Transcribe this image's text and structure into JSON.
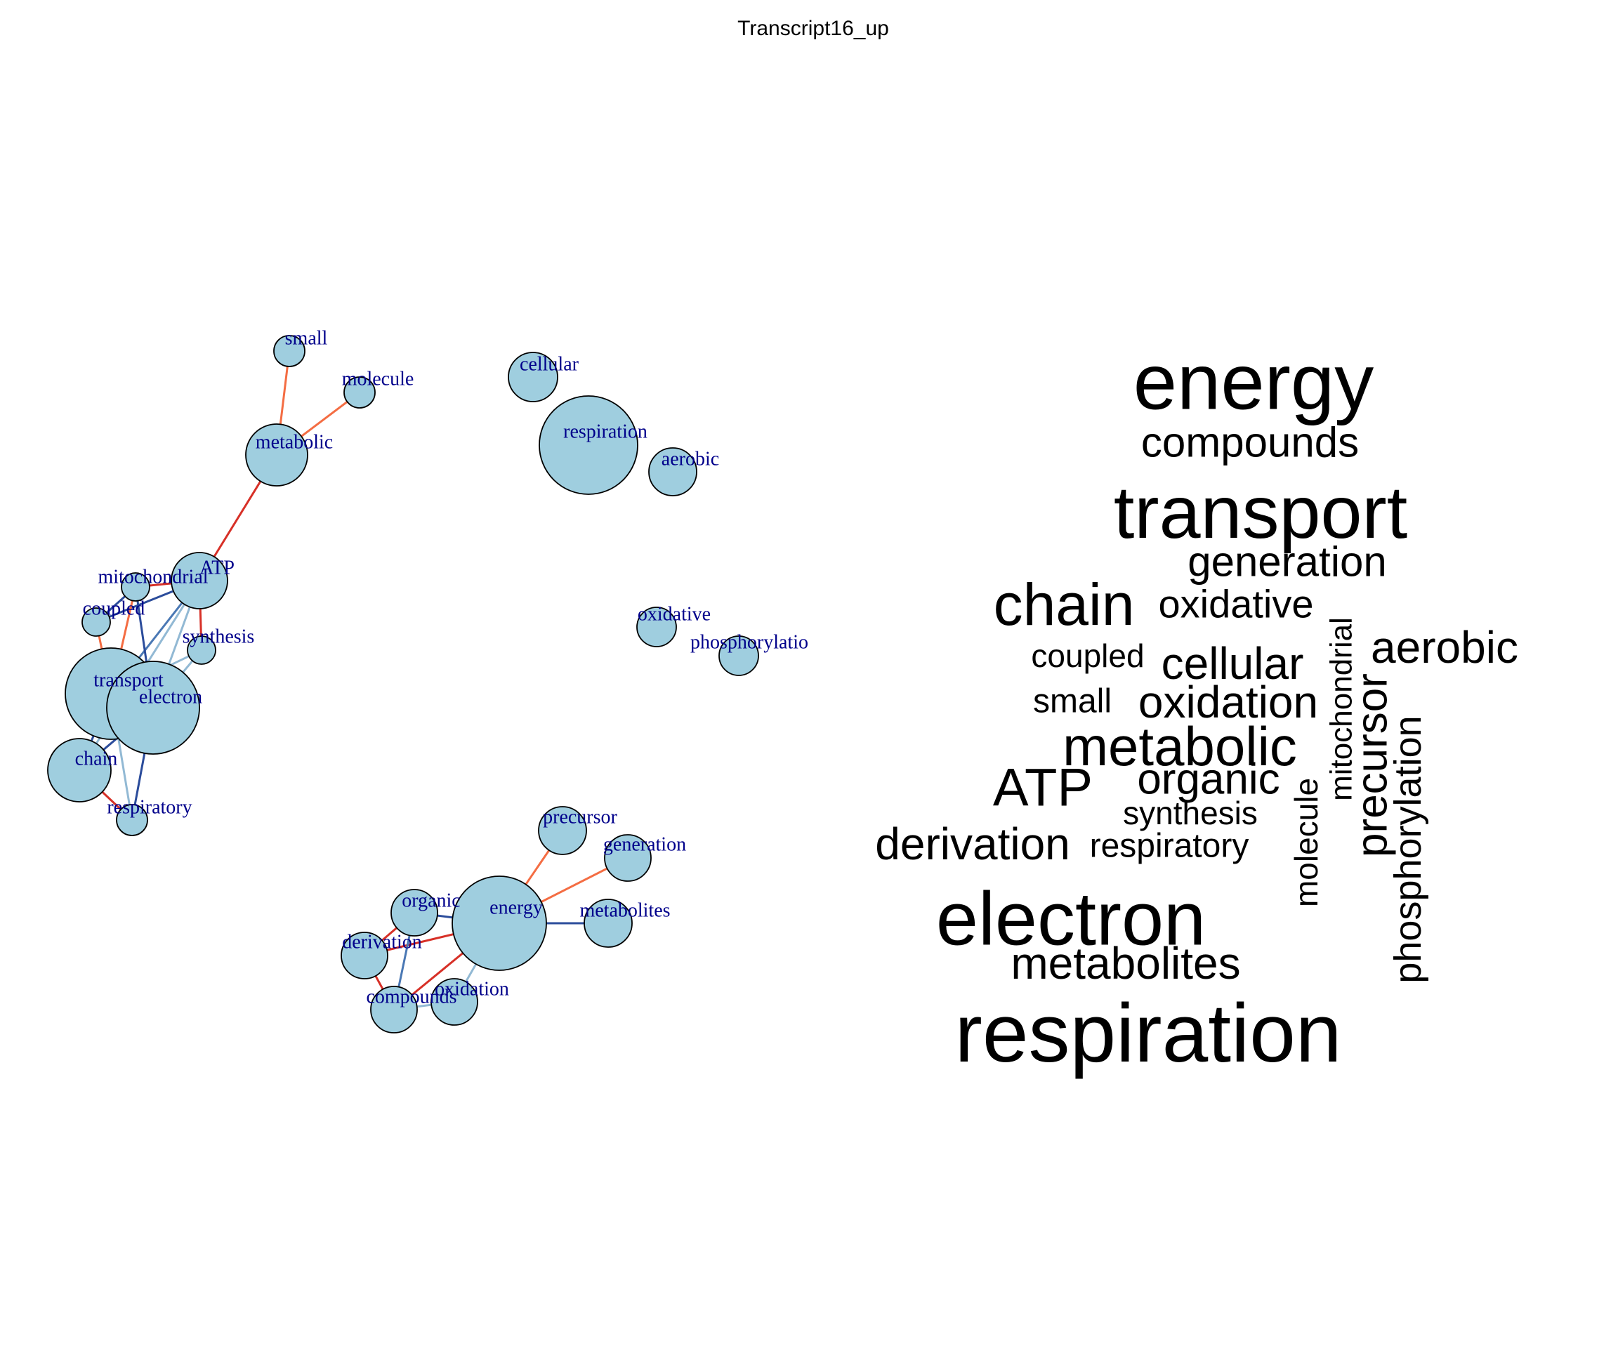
{
  "title": "Transcript16_up",
  "colors": {
    "node_fill": "#9FCEDF",
    "node_stroke": "#000000",
    "label": "#00008B",
    "edge_red": "#D73027",
    "edge_orange": "#F46D43",
    "edge_navy": "#2B4C9B",
    "edge_mid": "#4A78B4",
    "edge_light": "#92B9D4",
    "text": "#000000"
  },
  "network": {
    "nodes": [
      {
        "id": "small",
        "label": "small"
      },
      {
        "id": "molecule",
        "label": "molecule"
      },
      {
        "id": "metabolic",
        "label": "metabolic"
      },
      {
        "id": "cellular",
        "label": "cellular"
      },
      {
        "id": "respiration",
        "label": "respiration"
      },
      {
        "id": "aerobic",
        "label": "aerobic"
      },
      {
        "id": "ATP",
        "label": "ATP"
      },
      {
        "id": "mitochondrial",
        "label": "mitochondrial"
      },
      {
        "id": "coupled",
        "label": "coupled"
      },
      {
        "id": "synthesis",
        "label": "synthesis"
      },
      {
        "id": "transport",
        "label": "transport"
      },
      {
        "id": "electron",
        "label": "electron"
      },
      {
        "id": "chain",
        "label": "chain"
      },
      {
        "id": "respiratory",
        "label": "respiratory"
      },
      {
        "id": "oxidative",
        "label": "oxidative"
      },
      {
        "id": "phosphorylation",
        "label": "phosphorylatio"
      },
      {
        "id": "precursor",
        "label": "precursor"
      },
      {
        "id": "generation",
        "label": "generation"
      },
      {
        "id": "organic",
        "label": "organic"
      },
      {
        "id": "energy",
        "label": "energy"
      },
      {
        "id": "metabolites",
        "label": "metabolites"
      },
      {
        "id": "derivation",
        "label": "derivation"
      },
      {
        "id": "compounds",
        "label": "compounds"
      },
      {
        "id": "oxidation",
        "label": "oxidation"
      }
    ],
    "edges": [
      {
        "source": "small",
        "target": "metabolic",
        "color": "orange"
      },
      {
        "source": "molecule",
        "target": "metabolic",
        "color": "orange"
      },
      {
        "source": "metabolic",
        "target": "ATP",
        "color": "red"
      },
      {
        "source": "ATP",
        "target": "mitochondrial",
        "color": "red"
      },
      {
        "source": "ATP",
        "target": "synthesis",
        "color": "red"
      },
      {
        "source": "ATP",
        "target": "coupled",
        "color": "navy"
      },
      {
        "source": "ATP",
        "target": "transport",
        "color": "mid"
      },
      {
        "source": "ATP",
        "target": "electron",
        "color": "light"
      },
      {
        "source": "ATP",
        "target": "chain",
        "color": "light"
      },
      {
        "source": "mitochondrial",
        "target": "coupled",
        "color": "navy"
      },
      {
        "source": "mitochondrial",
        "target": "transport",
        "color": "orange"
      },
      {
        "source": "mitochondrial",
        "target": "electron",
        "color": "navy"
      },
      {
        "source": "coupled",
        "target": "transport",
        "color": "orange"
      },
      {
        "source": "synthesis",
        "target": "electron",
        "color": "light"
      },
      {
        "source": "synthesis",
        "target": "transport",
        "color": "light"
      },
      {
        "source": "transport",
        "target": "electron",
        "color": "navy"
      },
      {
        "source": "transport",
        "target": "chain",
        "color": "navy"
      },
      {
        "source": "electron",
        "target": "chain",
        "color": "navy"
      },
      {
        "source": "chain",
        "target": "respiratory",
        "color": "red"
      },
      {
        "source": "transport",
        "target": "respiratory",
        "color": "light"
      },
      {
        "source": "electron",
        "target": "respiratory",
        "color": "navy"
      },
      {
        "source": "energy",
        "target": "precursor",
        "color": "orange"
      },
      {
        "source": "energy",
        "target": "generation",
        "color": "orange"
      },
      {
        "source": "energy",
        "target": "metabolites",
        "color": "navy"
      },
      {
        "source": "energy",
        "target": "organic",
        "color": "navy"
      },
      {
        "source": "energy",
        "target": "derivation",
        "color": "red"
      },
      {
        "source": "energy",
        "target": "compounds",
        "color": "red"
      },
      {
        "source": "energy",
        "target": "oxidation",
        "color": "light"
      },
      {
        "source": "organic",
        "target": "derivation",
        "color": "red"
      },
      {
        "source": "organic",
        "target": "compounds",
        "color": "mid"
      },
      {
        "source": "derivation",
        "target": "compounds",
        "color": "red"
      },
      {
        "source": "compounds",
        "target": "oxidation",
        "color": "light"
      }
    ]
  },
  "wordcloud": {
    "words": [
      {
        "text": "energy",
        "orientation": "horizontal"
      },
      {
        "text": "compounds",
        "orientation": "horizontal"
      },
      {
        "text": "transport",
        "orientation": "horizontal"
      },
      {
        "text": "generation",
        "orientation": "horizontal"
      },
      {
        "text": "chain",
        "orientation": "horizontal"
      },
      {
        "text": "oxidative",
        "orientation": "horizontal"
      },
      {
        "text": "coupled",
        "orientation": "horizontal"
      },
      {
        "text": "cellular",
        "orientation": "horizontal"
      },
      {
        "text": "aerobic",
        "orientation": "horizontal"
      },
      {
        "text": "small",
        "orientation": "horizontal"
      },
      {
        "text": "oxidation",
        "orientation": "horizontal"
      },
      {
        "text": "metabolic",
        "orientation": "horizontal"
      },
      {
        "text": "ATP",
        "orientation": "horizontal"
      },
      {
        "text": "organic",
        "orientation": "horizontal"
      },
      {
        "text": "synthesis",
        "orientation": "horizontal"
      },
      {
        "text": "derivation",
        "orientation": "horizontal"
      },
      {
        "text": "respiratory",
        "orientation": "horizontal"
      },
      {
        "text": "electron",
        "orientation": "horizontal"
      },
      {
        "text": "metabolites",
        "orientation": "horizontal"
      },
      {
        "text": "respiration",
        "orientation": "horizontal"
      },
      {
        "text": "mitochondrial",
        "orientation": "vertical"
      },
      {
        "text": "precursor",
        "orientation": "vertical"
      },
      {
        "text": "molecule",
        "orientation": "vertical"
      },
      {
        "text": "phosphorylation",
        "orientation": "vertical"
      }
    ]
  }
}
